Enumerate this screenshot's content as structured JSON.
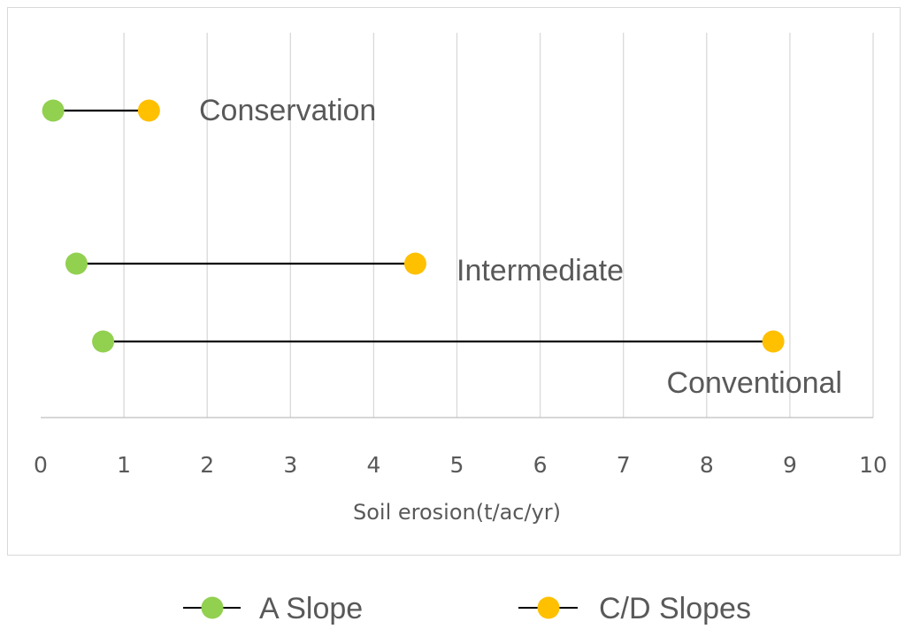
{
  "chart_data": {
    "type": "scatter",
    "xlabel": "Soil erosion(t/ac/yr)",
    "ylabel": "",
    "title": "",
    "xlim": [
      0,
      10
    ],
    "xticks": [
      0,
      1,
      2,
      3,
      4,
      5,
      6,
      7,
      8,
      9,
      10
    ],
    "grid": "vertical",
    "legend_position": "bottom",
    "categories": [
      "Conservation",
      "Intermediate",
      "Conventional"
    ],
    "series": [
      {
        "name": "A Slope",
        "color": "#92d050",
        "values": [
          0.15,
          0.43,
          0.75
        ]
      },
      {
        "name": "C/D Slopes",
        "color": "#ffc000",
        "values": [
          1.3,
          4.5,
          8.8
        ]
      }
    ],
    "connector_color": "#000000"
  }
}
